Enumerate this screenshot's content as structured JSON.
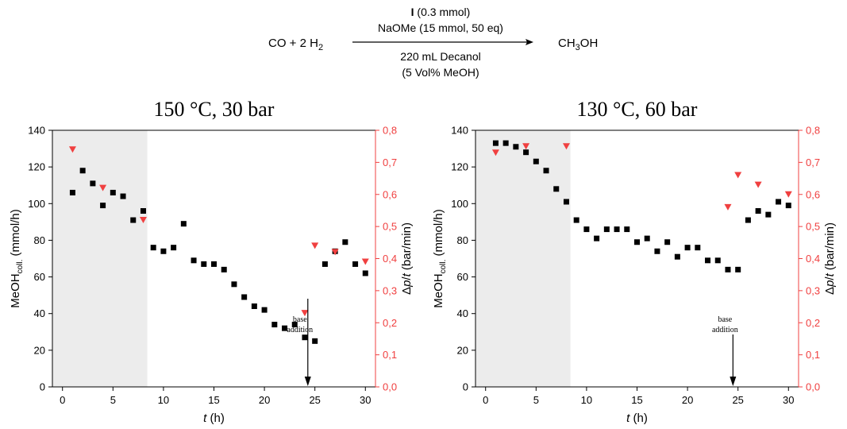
{
  "scheme": {
    "reactants": "CO + 2 H",
    "reactants_sub": "2",
    "reagent_bold": "I",
    "reagent_amount": " (0.3 mmol)",
    "base": "NaOMe (15 mmol, 50 eq)",
    "solvent": "220 mL Decanol",
    "additive": "(5 Vol% MeOH)",
    "product_a": "CH",
    "product_sub": "3",
    "product_b": "OH"
  },
  "colors": {
    "marker_black": "#000000",
    "marker_red": "#f04040",
    "shade": "#ececec"
  },
  "chart_data": [
    {
      "type": "scatter",
      "title": "150 °C, 30 bar",
      "xlabel": "t (h)",
      "ylabel": "MeOH coll. (mmol/h)",
      "y2label": "Δp/t (bar/min)",
      "xlim": [
        -1,
        31
      ],
      "ylim": [
        0,
        140
      ],
      "y2lim": [
        0,
        0.8
      ],
      "xticks": [
        "0",
        "5",
        "10",
        "15",
        "20",
        "25",
        "30"
      ],
      "yticks": [
        "0",
        "20",
        "40",
        "60",
        "80",
        "100",
        "120",
        "140"
      ],
      "y2ticks": [
        "0,0",
        "0,1",
        "0,2",
        "0,3",
        "0,4",
        "0,5",
        "0,6",
        "0,7",
        "0,8"
      ],
      "shaded_region_x": [
        -1,
        8.4
      ],
      "annotation": {
        "text_1": "base",
        "text_2": "addition",
        "x": 24.3
      },
      "series": [
        {
          "name": "MeOH coll.",
          "marker": "square",
          "axis": "left",
          "x": [
            1,
            2,
            3,
            4,
            5,
            6,
            7,
            8,
            9,
            10,
            11,
            12,
            13,
            14,
            15,
            16,
            17,
            18,
            19,
            20,
            21,
            22,
            23,
            24,
            25,
            26,
            27,
            28,
            29,
            30
          ],
          "y": [
            106,
            118,
            111,
            99,
            106,
            104,
            91,
            96,
            76,
            74,
            76,
            89,
            69,
            67,
            67,
            64,
            56,
            49,
            44,
            42,
            34,
            32,
            34,
            27,
            25,
            67,
            74,
            79,
            67,
            62
          ]
        },
        {
          "name": "Δp/t",
          "marker": "triangle-down",
          "axis": "right",
          "x": [
            1,
            4,
            8,
            24,
            25,
            27,
            30
          ],
          "y": [
            0.74,
            0.62,
            0.52,
            0.23,
            0.44,
            0.42,
            0.39
          ]
        }
      ]
    },
    {
      "type": "scatter",
      "title": "130 °C, 60 bar",
      "xlabel": "t (h)",
      "ylabel": "MeOH coll. (mmol/h)",
      "y2label": "Δp/t (bar/min)",
      "xlim": [
        -1,
        31
      ],
      "ylim": [
        0,
        140
      ],
      "y2lim": [
        0,
        0.8
      ],
      "xticks": [
        "0",
        "5",
        "10",
        "15",
        "20",
        "25",
        "30"
      ],
      "yticks": [
        "0",
        "20",
        "40",
        "60",
        "80",
        "100",
        "120",
        "140"
      ],
      "y2ticks": [
        "0,0",
        "0,1",
        "0,2",
        "0,3",
        "0,4",
        "0,5",
        "0,6",
        "0,7",
        "0,8"
      ],
      "shaded_region_x": [
        -1,
        8.4
      ],
      "annotation": {
        "text_1": "base",
        "text_2": "addition",
        "x": 24.5
      },
      "series": [
        {
          "name": "MeOH coll.",
          "marker": "square",
          "axis": "left",
          "x": [
            1,
            2,
            3,
            4,
            5,
            6,
            7,
            8,
            9,
            10,
            11,
            12,
            13,
            14,
            15,
            16,
            17,
            18,
            19,
            20,
            21,
            22,
            23,
            24,
            25,
            26,
            27,
            28,
            29,
            30
          ],
          "y": [
            133,
            133,
            131,
            128,
            123,
            118,
            108,
            101,
            91,
            86,
            81,
            86,
            86,
            86,
            79,
            81,
            74,
            79,
            71,
            76,
            76,
            69,
            69,
            64,
            64,
            91,
            96,
            94,
            101,
            99
          ]
        },
        {
          "name": "Δp/t",
          "marker": "triangle-down",
          "axis": "right",
          "x": [
            1,
            4,
            8,
            24,
            25,
            27,
            30
          ],
          "y": [
            0.73,
            0.75,
            0.75,
            0.56,
            0.66,
            0.63,
            0.6
          ]
        }
      ]
    }
  ]
}
